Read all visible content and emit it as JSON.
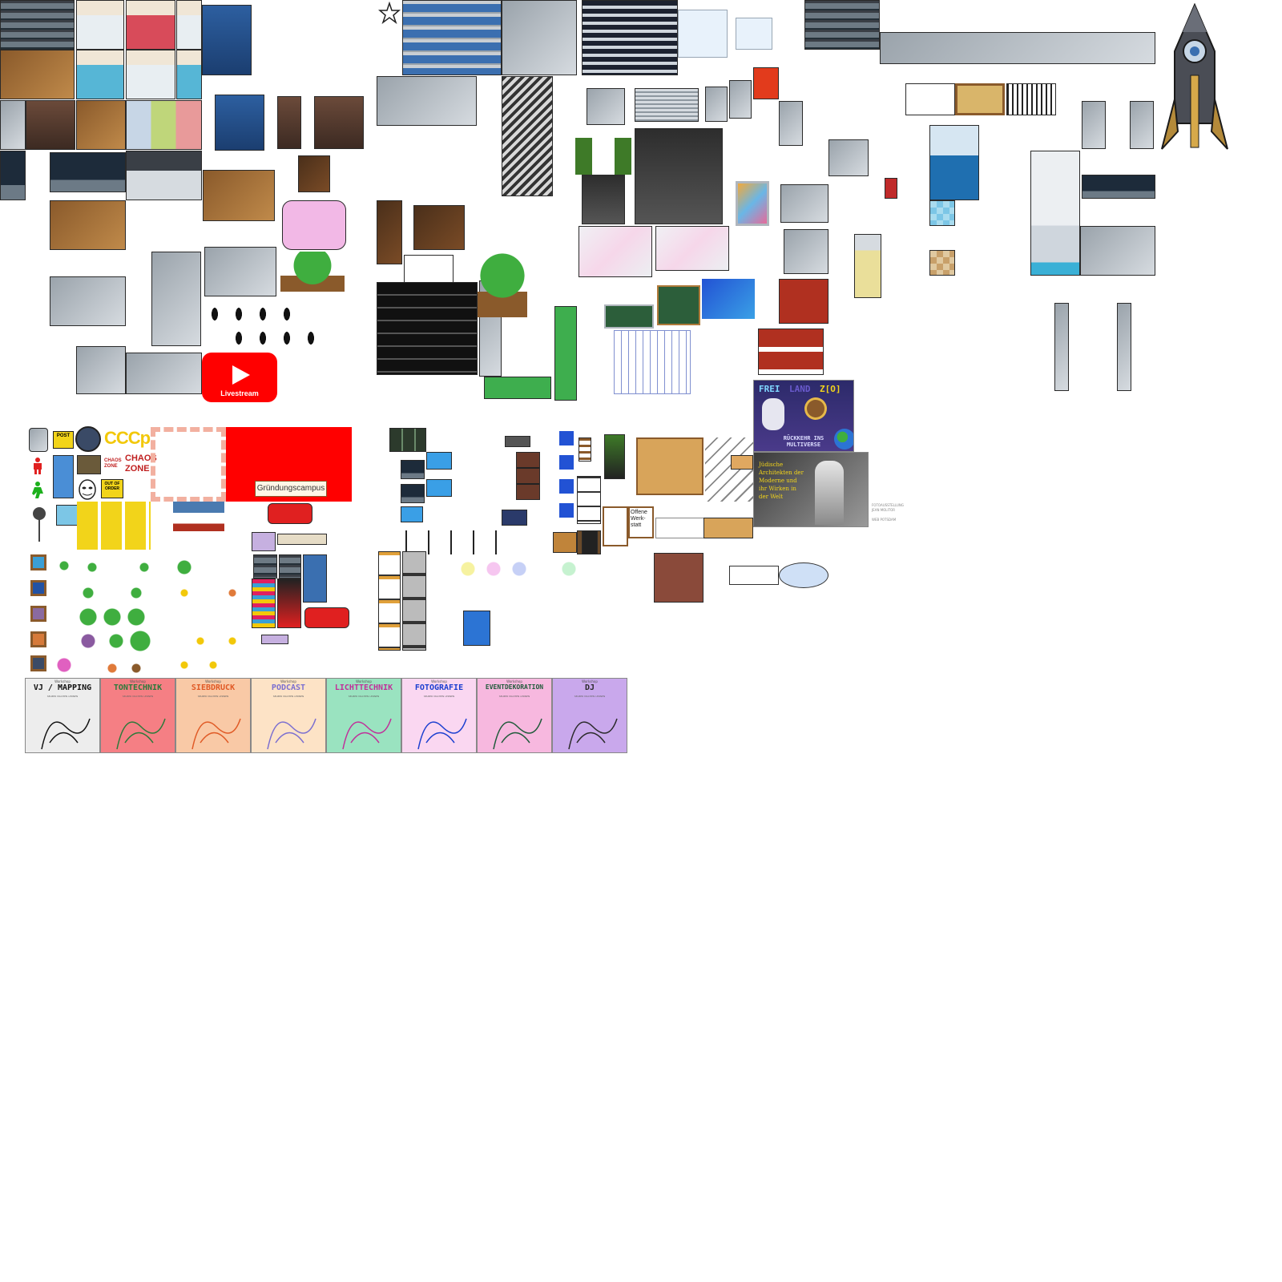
{
  "sheet": {
    "youtube_label": "Livestream",
    "cccp_label": "CCCp",
    "chaos_zone_label": "CHAOS ZONE",
    "chaos_zone_small": "CHAOS ZONE",
    "out_of_order_label": "OUT OF ORDER",
    "post_label": "POST",
    "gruendungscampus_label": "Gründungscampus",
    "offene_werkstatt_label": "Offene Werk-statt",
    "freiland_title_a": "FREI",
    "freiland_title_b": "LAND",
    "freiland_title_c": "Z[O]",
    "freiland_sub": "RÜCKKEHR INS MULTIVERSE",
    "arch_text": "Jüdische Architekten der Moderne und ihr Wirken in der Welt",
    "arch_caption_1": "FOTOAUSSTELLUNG",
    "arch_caption_2": "JEAN MOLITOR",
    "arch_caption_3": "WEB POTSDAM"
  },
  "workshops": [
    {
      "title": "VJ / MAPPING",
      "color": "#ededed",
      "text_color": "#111111"
    },
    {
      "title": "TONTECHNIK",
      "color": "#f57f84",
      "text_color": "#2b7a3a"
    },
    {
      "title": "SIEBDRUCK",
      "color": "#f9c9a6",
      "text_color": "#e05a26"
    },
    {
      "title": "PODCAST",
      "color": "#fde3c6",
      "text_color": "#7b6fd0"
    },
    {
      "title": "LICHTTECHNIK",
      "color": "#9ae3c0",
      "text_color": "#c0309a"
    },
    {
      "title": "FOTOGRAFIE",
      "color": "#fad7f1",
      "text_color": "#1b3fd0"
    },
    {
      "title": "EVENTDEKORATION",
      "color": "#f7b8df",
      "text_color": "#1f5a3a"
    },
    {
      "title": "DJ",
      "color": "#c9a8ec",
      "text_color": "#2a2a2a"
    }
  ],
  "workshop_subtitle": "SELBER MACHEN LERNEN",
  "workshop_kicker": "Workshop",
  "icons": {
    "rocket": "rocket-icon",
    "star": "star-icon",
    "play": "play-icon",
    "anonymous": "mask-icon",
    "pedestrian_red": "pedestrian-red-icon",
    "pedestrian_green": "pedestrian-green-icon"
  },
  "colors": {
    "youtube_red": "#ff0000",
    "sign_red": "#ff0000",
    "rocket_body": "#4a4d55",
    "rocket_fin": "#b48a3a"
  }
}
